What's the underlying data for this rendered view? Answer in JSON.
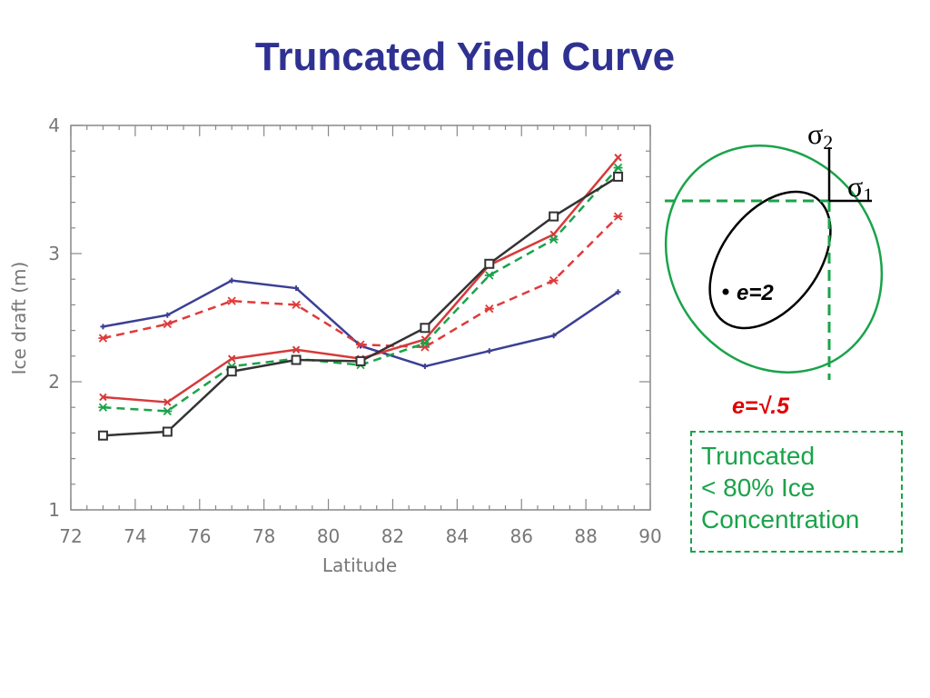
{
  "title": "Truncated Yield Curve",
  "chart_data": {
    "type": "line",
    "title": "",
    "xlabel": "Latitude",
    "ylabel": "Ice draft (m)",
    "xlim": [
      72,
      90
    ],
    "ylim": [
      1,
      4
    ],
    "xticks": [
      "72",
      "74",
      "76",
      "78",
      "80",
      "82",
      "84",
      "86",
      "88",
      "90"
    ],
    "yticks": [
      "1",
      "2",
      "3",
      "4"
    ],
    "grid": false,
    "x": [
      73,
      75,
      77,
      79,
      81,
      83,
      85,
      87,
      89
    ],
    "series": [
      {
        "color": "#3b3f94",
        "dash": "solid",
        "marker": "plus",
        "values": [
          2.43,
          2.52,
          2.79,
          2.73,
          2.28,
          2.12,
          2.24,
          2.36,
          2.7
        ]
      },
      {
        "color": "#e03a3a",
        "dash": "dashed",
        "marker": "star",
        "values": [
          2.34,
          2.45,
          2.63,
          2.6,
          2.29,
          2.27,
          2.57,
          2.79,
          3.29
        ]
      },
      {
        "color": "#d63a3a",
        "dash": "solid",
        "marker": "x",
        "values": [
          1.88,
          1.84,
          2.18,
          2.25,
          2.18,
          2.33,
          2.91,
          3.15,
          3.75
        ]
      },
      {
        "color": "#1aa34a",
        "dash": "dashed",
        "marker": "star",
        "values": [
          1.8,
          1.77,
          2.12,
          2.18,
          2.13,
          2.3,
          2.83,
          3.11,
          3.67
        ]
      },
      {
        "color": "#333333",
        "dash": "solid",
        "marker": "square",
        "values": [
          1.58,
          1.61,
          2.08,
          2.17,
          2.16,
          2.42,
          2.92,
          3.29,
          3.6
        ]
      }
    ]
  },
  "diagram": {
    "sigma2": "σ",
    "sigma2_sub": "2",
    "sigma1": "σ",
    "sigma1_sub": "1",
    "inner_label": "e=2",
    "outer_label": "e=√.5",
    "colors": {
      "inner": "#000000",
      "outer": "#1aa34a",
      "outer_label": "#e00000"
    }
  },
  "truncated_box": {
    "line1": "Truncated",
    "line2": "< 80% Ice",
    "line3": "Concentration"
  }
}
